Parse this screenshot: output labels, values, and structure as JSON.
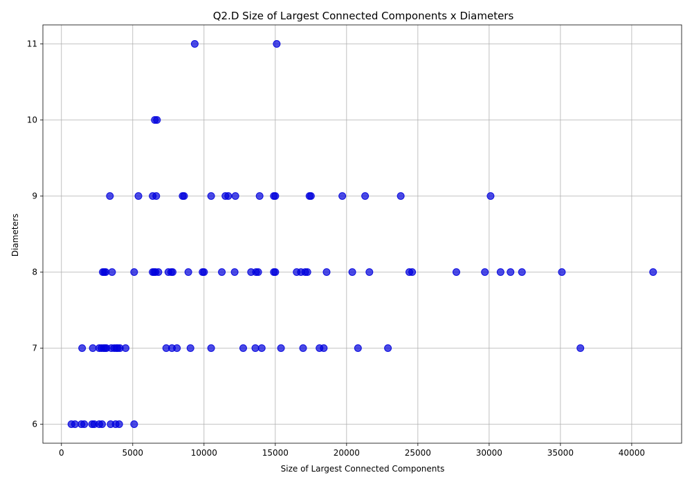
{
  "chart_data": {
    "type": "scatter",
    "title": "Q2.D Size of Largest Connected Components x Diameters",
    "xlabel": "Size of Largest Connected Components",
    "ylabel": "Diameters",
    "xlim": [
      -1300,
      43500
    ],
    "ylim": [
      5.75,
      11.25
    ],
    "xticks": [
      0,
      5000,
      10000,
      15000,
      20000,
      25000,
      30000,
      35000,
      40000
    ],
    "yticks": [
      6,
      7,
      8,
      9,
      10,
      11
    ],
    "grid": true,
    "color": "#0000dd",
    "points": [
      [
        9350,
        11
      ],
      [
        15100,
        11
      ],
      [
        6550,
        10
      ],
      [
        6700,
        10
      ],
      [
        3400,
        9
      ],
      [
        5400,
        9
      ],
      [
        6400,
        9
      ],
      [
        6650,
        9
      ],
      [
        8500,
        9
      ],
      [
        8600,
        9
      ],
      [
        10500,
        9
      ],
      [
        11500,
        9
      ],
      [
        11700,
        9
      ],
      [
        12200,
        9
      ],
      [
        13900,
        9
      ],
      [
        14900,
        9
      ],
      [
        15000,
        9
      ],
      [
        17400,
        9
      ],
      [
        17500,
        9
      ],
      [
        19700,
        9
      ],
      [
        21300,
        9
      ],
      [
        23800,
        9
      ],
      [
        30100,
        9
      ],
      [
        2900,
        8
      ],
      [
        3000,
        8
      ],
      [
        3100,
        8
      ],
      [
        3550,
        8
      ],
      [
        5100,
        8
      ],
      [
        6400,
        8
      ],
      [
        6500,
        8
      ],
      [
        6600,
        8
      ],
      [
        6800,
        8
      ],
      [
        7500,
        8
      ],
      [
        7700,
        8
      ],
      [
        7800,
        8
      ],
      [
        8900,
        8
      ],
      [
        9900,
        8
      ],
      [
        10000,
        8
      ],
      [
        11250,
        8
      ],
      [
        12150,
        8
      ],
      [
        13300,
        8
      ],
      [
        13650,
        8
      ],
      [
        13800,
        8
      ],
      [
        14900,
        8
      ],
      [
        15000,
        8
      ],
      [
        16500,
        8
      ],
      [
        16800,
        8
      ],
      [
        17100,
        8
      ],
      [
        17250,
        8
      ],
      [
        18600,
        8
      ],
      [
        20400,
        8
      ],
      [
        21600,
        8
      ],
      [
        24400,
        8
      ],
      [
        24600,
        8
      ],
      [
        27700,
        8
      ],
      [
        29700,
        8
      ],
      [
        30800,
        8
      ],
      [
        31500,
        8
      ],
      [
        32300,
        8
      ],
      [
        35100,
        8
      ],
      [
        41500,
        8
      ],
      [
        1450,
        7
      ],
      [
        2200,
        7
      ],
      [
        2650,
        7
      ],
      [
        2800,
        7
      ],
      [
        2950,
        7
      ],
      [
        3050,
        7
      ],
      [
        3150,
        7
      ],
      [
        3500,
        7
      ],
      [
        3700,
        7
      ],
      [
        3850,
        7
      ],
      [
        3950,
        7
      ],
      [
        4100,
        7
      ],
      [
        4500,
        7
      ],
      [
        7350,
        7
      ],
      [
        7750,
        7
      ],
      [
        8100,
        7
      ],
      [
        9050,
        7
      ],
      [
        10500,
        7
      ],
      [
        12750,
        7
      ],
      [
        13600,
        7
      ],
      [
        14050,
        7
      ],
      [
        15400,
        7
      ],
      [
        16950,
        7
      ],
      [
        18100,
        7
      ],
      [
        18400,
        7
      ],
      [
        20800,
        7
      ],
      [
        22900,
        7
      ],
      [
        36400,
        7
      ],
      [
        700,
        6
      ],
      [
        950,
        6
      ],
      [
        1400,
        6
      ],
      [
        1600,
        6
      ],
      [
        2150,
        6
      ],
      [
        2300,
        6
      ],
      [
        2650,
        6
      ],
      [
        2850,
        6
      ],
      [
        3450,
        6
      ],
      [
        3800,
        6
      ],
      [
        4050,
        6
      ],
      [
        5100,
        6
      ]
    ]
  }
}
